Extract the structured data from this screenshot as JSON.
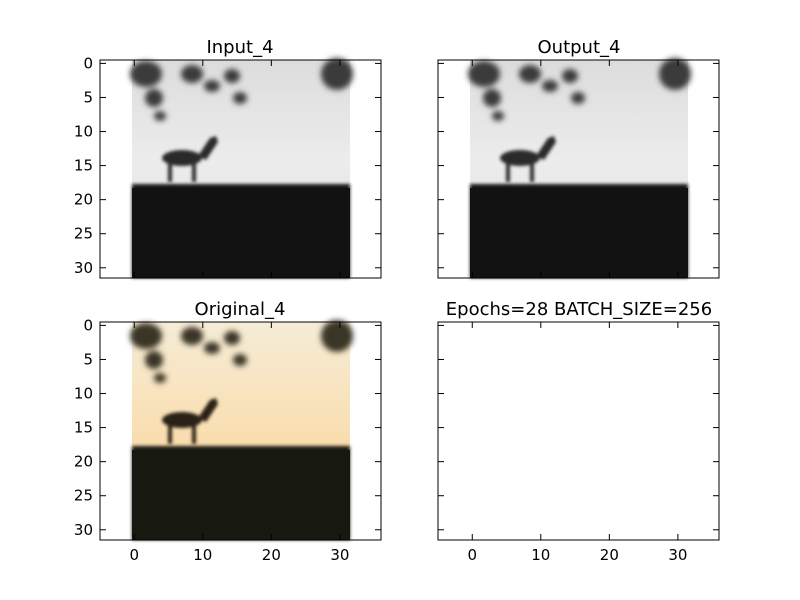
{
  "chart_data": [
    {
      "type": "image",
      "title": "Input_4",
      "image_kind": "grayscale",
      "image_size": [
        32,
        32
      ],
      "xlim": [
        -5,
        36
      ],
      "ylim": [
        31.5,
        -0.5
      ],
      "xticks": [],
      "yticks": [
        0,
        5,
        10,
        15,
        20,
        25,
        30
      ],
      "ytick_labels": [
        "0",
        "5",
        "10",
        "15",
        "20",
        "25",
        "30"
      ]
    },
    {
      "type": "image",
      "title": "Output_4",
      "image_kind": "grayscale",
      "image_size": [
        32,
        32
      ],
      "xlim": [
        -5,
        36
      ],
      "ylim": [
        31.5,
        -0.5
      ],
      "xticks": [],
      "yticks": []
    },
    {
      "type": "image",
      "title": "Original_4",
      "image_kind": "color",
      "image_size": [
        32,
        32
      ],
      "xlim": [
        -5,
        36
      ],
      "ylim": [
        31.5,
        -0.5
      ],
      "xticks": [
        0,
        10,
        20,
        30
      ],
      "xtick_labels": [
        "0",
        "10",
        "20",
        "30"
      ],
      "yticks": [
        0,
        5,
        10,
        15,
        20,
        25,
        30
      ],
      "ytick_labels": [
        "0",
        "5",
        "10",
        "15",
        "20",
        "25",
        "30"
      ]
    },
    {
      "type": "empty",
      "title": "Epochs=28 BATCH_SIZE=256",
      "xlim": [
        -5,
        36
      ],
      "ylim": [
        31.5,
        -0.5
      ],
      "xticks": [
        0,
        10,
        20,
        30
      ],
      "xtick_labels": [
        "0",
        "10",
        "20",
        "30"
      ],
      "yticks": []
    }
  ],
  "colors": {
    "sky_gray": "#e9e9e9",
    "ground_gray": "#141414",
    "silhouette": "#202020",
    "sky_orange_top": "#f8eed8",
    "sky_orange_bottom": "#f7c98c",
    "ground_color": "#171810"
  }
}
